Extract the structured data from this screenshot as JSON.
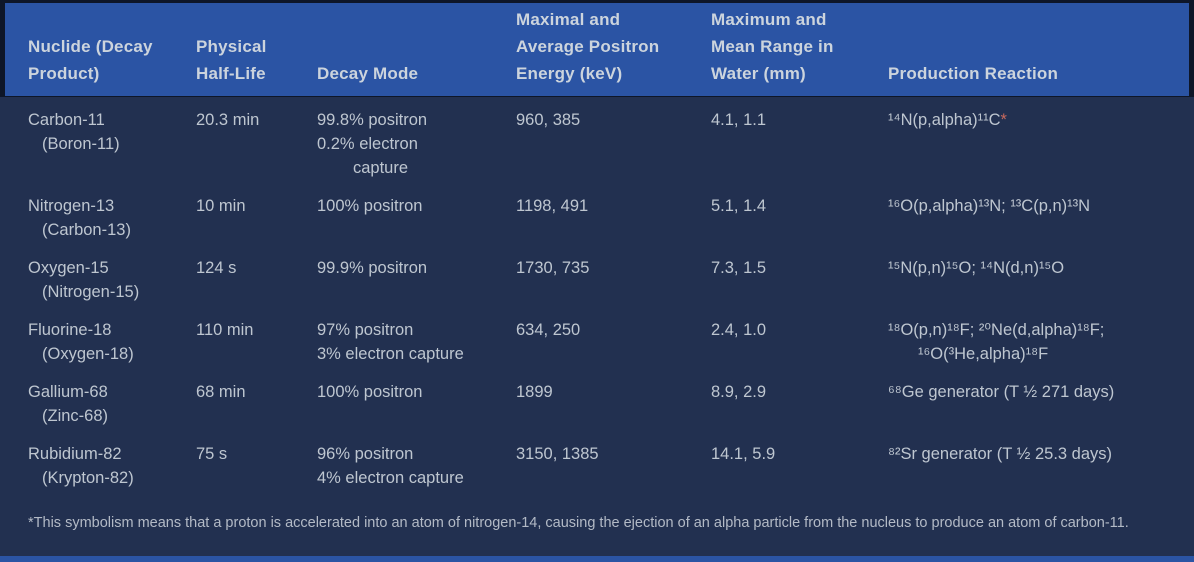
{
  "colors": {
    "header_bg": "#2b54a4",
    "body_bg": "#223050",
    "frame_dark": "#0e1628",
    "header_text": "#ccd4dd",
    "body_text": "#bec6d0",
    "footnote_text": "#b3bac6",
    "asterisk_accent": "#c9695d",
    "bottom_bar": "#2b54a4"
  },
  "table": {
    "headers": {
      "nuclide": [
        "Nuclide (Decay",
        "Product)"
      ],
      "half_life": [
        "Physical",
        "Half-Life"
      ],
      "decay_mode": [
        "Decay Mode"
      ],
      "energy": [
        "Maximal and",
        "Average Positron",
        "Energy (keV)"
      ],
      "range": [
        "Maximum and",
        "Mean Range in",
        "Water (mm)"
      ],
      "reaction": [
        "Production Reaction"
      ]
    },
    "rows": [
      {
        "nuclide": [
          "Carbon-11",
          "(Boron-11)"
        ],
        "half_life": "20.3 min",
        "decay_mode": [
          "99.8% positron",
          "0.2% electron",
          "capture"
        ],
        "energy": "960, 385",
        "range": "4.1, 1.1",
        "reaction": [
          "¹⁴N(p,alpha)¹¹C"
        ],
        "reaction_marker": "*"
      },
      {
        "nuclide": [
          "Nitrogen-13",
          "(Carbon-13)"
        ],
        "half_life": "10 min",
        "decay_mode": [
          "100% positron"
        ],
        "energy": "1198, 491",
        "range": "5.1, 1.4",
        "reaction": [
          "¹⁶O(p,alpha)¹³N; ¹³C(p,n)¹³N"
        ]
      },
      {
        "nuclide": [
          "Oxygen-15",
          "(Nitrogen-15)"
        ],
        "half_life": "124 s",
        "decay_mode": [
          "99.9% positron"
        ],
        "energy": "1730, 735",
        "range": "7.3, 1.5",
        "reaction": [
          "¹⁵N(p,n)¹⁵O; ¹⁴N(d,n)¹⁵O"
        ]
      },
      {
        "nuclide": [
          "Fluorine-18",
          "(Oxygen-18)"
        ],
        "half_life": "110 min",
        "decay_mode": [
          "97% positron",
          "3% electron capture"
        ],
        "energy": "634, 250",
        "range": "2.4, 1.0",
        "reaction": [
          "¹⁸O(p,n)¹⁸F; ²⁰Ne(d,alpha)¹⁸F;",
          "¹⁶O(³He,alpha)¹⁸F"
        ]
      },
      {
        "nuclide": [
          "Gallium-68",
          "(Zinc-68)"
        ],
        "half_life": "68 min",
        "decay_mode": [
          "100% positron"
        ],
        "energy": "1899",
        "range": "8.9, 2.9",
        "reaction": [
          "⁶⁸Ge generator (T ½ 271 days)"
        ]
      },
      {
        "nuclide": [
          "Rubidium-82",
          "(Krypton-82)"
        ],
        "half_life": "75 s",
        "decay_mode": [
          "96% positron",
          "4% electron capture"
        ],
        "energy": "3150, 1385",
        "range": "14.1, 5.9",
        "reaction": [
          "⁸²Sr generator (T ½ 25.3 days)"
        ]
      }
    ]
  },
  "footnote": "*This symbolism means that a proton is accelerated into an atom of nitrogen-14, causing the ejection of an alpha particle from the nucleus to produce an atom of carbon-11."
}
